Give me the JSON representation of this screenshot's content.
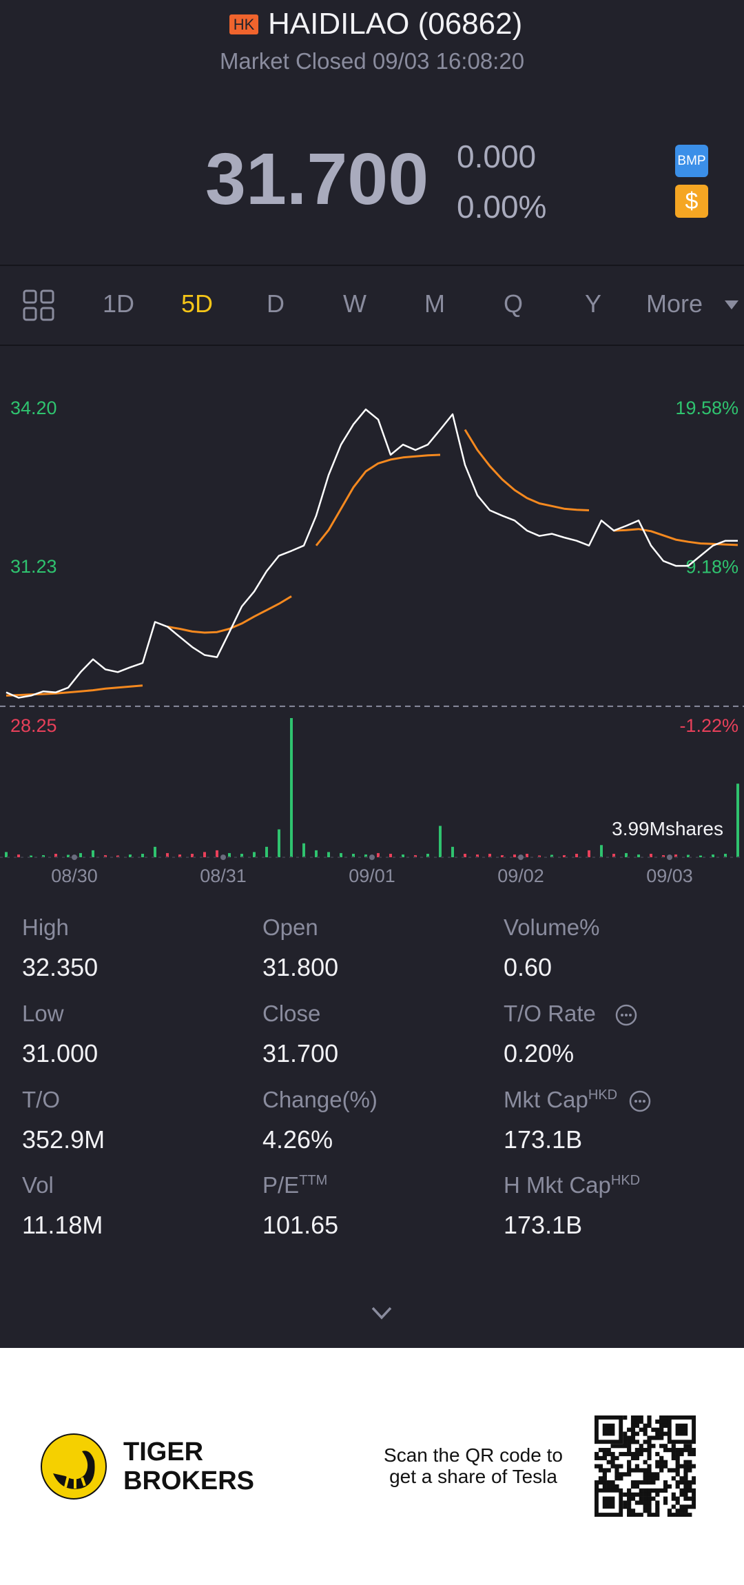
{
  "header": {
    "market": "HK",
    "title": "HAIDILAO (06862)",
    "status": "Market Closed 09/03 16:08:20"
  },
  "quote": {
    "price": "31.700",
    "change": "0.000",
    "change_pct": "0.00%",
    "badges": [
      "BMP",
      "$"
    ]
  },
  "tabs": {
    "items": [
      "1D",
      "5D",
      "D",
      "W",
      "M",
      "Q",
      "Y",
      "More"
    ],
    "active": 1
  },
  "chart": {
    "type": "line",
    "ylim": [
      28.25,
      34.2
    ],
    "yticks": [
      {
        "value": 34.2,
        "label": "34.20"
      },
      31.23,
      28.25
    ],
    "y2lim": [
      -1.22,
      19.58
    ],
    "y2ticks": [
      {
        "value": 19.58,
        "label": "19.58%"
      },
      {
        "value": 9.18,
        "label": "9.18%"
      },
      {
        "value": -1.22,
        "label": "-1.22%"
      }
    ],
    "prev_close": 28.6,
    "categories": [
      "08/30",
      "08/31",
      "09/01",
      "09/02",
      "09/03"
    ],
    "price": {
      "color": "#ffffff",
      "values": [
        28.86,
        28.76,
        28.8,
        28.88,
        28.86,
        28.95,
        29.24,
        29.48,
        29.29,
        29.24,
        29.33,
        29.41,
        30.18,
        30.09,
        29.9,
        29.71,
        29.56,
        29.52,
        29.99,
        30.47,
        30.75,
        31.13,
        31.42,
        31.51,
        31.61,
        32.17,
        32.93,
        33.5,
        33.88,
        34.16,
        33.97,
        33.31,
        33.5,
        33.4,
        33.5,
        33.78,
        34.07,
        33.12,
        32.55,
        32.27,
        32.17,
        32.08,
        31.89,
        31.79,
        31.83,
        31.76,
        31.7,
        31.61,
        32.08,
        31.89,
        31.98,
        32.08,
        31.61,
        31.32,
        31.23,
        31.23,
        31.42,
        31.61,
        31.7,
        31.7
      ]
    },
    "avg": {
      "color": "#f5891f",
      "values": [
        28.8,
        28.81,
        28.82,
        28.83,
        28.84,
        28.86,
        28.88,
        28.9,
        28.93,
        28.95,
        28.97,
        28.99,
        null,
        30.09,
        30.05,
        30.0,
        29.98,
        29.99,
        30.05,
        30.15,
        30.28,
        30.4,
        30.52,
        30.66,
        null,
        31.61,
        31.9,
        32.3,
        32.7,
        33.0,
        33.15,
        33.22,
        33.26,
        33.28,
        33.3,
        33.31,
        null,
        33.78,
        33.4,
        33.1,
        32.85,
        32.65,
        32.5,
        32.4,
        32.35,
        32.3,
        32.28,
        32.27,
        null,
        31.89,
        31.9,
        31.92,
        31.88,
        31.8,
        31.72,
        31.68,
        31.65,
        31.64,
        31.63,
        31.62
      ]
    },
    "volume": {
      "up_color": "#2fc36f",
      "down_color": "#e8405a",
      "lim": [
        0,
        3.99
      ],
      "label": "3.99Mshares",
      "values": [
        0.15,
        0.08,
        0.05,
        0.06,
        0.1,
        0.07,
        0.12,
        0.2,
        0.06,
        0.05,
        0.08,
        0.1,
        0.3,
        0.12,
        0.08,
        0.1,
        0.15,
        0.2,
        0.12,
        0.1,
        0.15,
        0.3,
        0.8,
        3.99,
        0.4,
        0.2,
        0.15,
        0.12,
        0.1,
        0.08,
        0.12,
        0.1,
        0.08,
        0.06,
        0.1,
        0.9,
        0.3,
        0.1,
        0.08,
        0.1,
        0.06,
        0.08,
        0.1,
        0.05,
        0.07,
        0.06,
        0.1,
        0.2,
        0.35,
        0.1,
        0.12,
        0.08,
        0.1,
        0.06,
        0.08,
        0.07,
        0.05,
        0.08,
        0.1,
        2.11
      ]
    }
  },
  "stats": [
    {
      "label": "High",
      "value": "32.350"
    },
    {
      "label": "Open",
      "value": "31.800"
    },
    {
      "label": "Volume%",
      "value": "0.60"
    },
    {
      "label": "Low",
      "value": "31.000"
    },
    {
      "label": "Close",
      "value": "31.700"
    },
    {
      "label": "T/O Rate",
      "value": "0.20%"
    },
    {
      "label": "T/O",
      "value": "352.9M"
    },
    {
      "label": "Change(%)",
      "value": "4.26%"
    },
    {
      "label": "Mkt Cap",
      "sup": "HKD",
      "value": "173.1B"
    },
    {
      "label": "Vol",
      "value": "11.18M"
    },
    {
      "label": "P/E",
      "sup": "TTM",
      "value": "101.65"
    },
    {
      "label": "H Mkt Cap",
      "sup": "HKD",
      "value": "173.1B"
    }
  ],
  "footer": {
    "brand": [
      "TIGER",
      "BROKERS"
    ],
    "promo": [
      "Scan the QR code to",
      "get a share of Tesla"
    ]
  }
}
